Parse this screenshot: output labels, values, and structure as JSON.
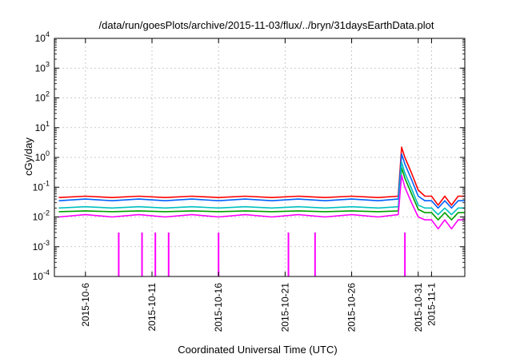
{
  "chart_data": {
    "type": "line",
    "title": "/data/run/goesPlots/archive/2015-11-03/flux/../bryn/31daysEarthData.plot",
    "xlabel": "Coordinated Universal Time (UTC)",
    "ylabel": "cGy/day",
    "yscale": "log",
    "ylim": [
      0.0001,
      10000
    ],
    "xlim": [
      "2015-10-03 16:00",
      "2015-11-03 12:00"
    ],
    "grid": true,
    "legend": "none",
    "yticks": [
      {
        "base": "10",
        "exp": "-4"
      },
      {
        "base": "10",
        "exp": "-3"
      },
      {
        "base": "10",
        "exp": "-2"
      },
      {
        "base": "10",
        "exp": "-1"
      },
      {
        "base": "10",
        "exp": "0"
      },
      {
        "base": "10",
        "exp": "1"
      },
      {
        "base": "10",
        "exp": "2"
      },
      {
        "base": "10",
        "exp": "3"
      },
      {
        "base": "10",
        "exp": "4"
      }
    ],
    "xticks": [
      {
        "label": "2015-10-6",
        "date": "2015-10-06"
      },
      {
        "label": "2015-10-11",
        "date": "2015-10-11"
      },
      {
        "label": "2015-10-16",
        "date": "2015-10-16"
      },
      {
        "label": "2015-10-21",
        "date": "2015-10-21"
      },
      {
        "label": "2015-10-26",
        "date": "2015-10-26"
      },
      {
        "label": "2015-10-31",
        "date": "2015-10-31"
      },
      {
        "label": "2015-11-1",
        "date": "2015-11-01"
      }
    ],
    "x": [
      "2015-10-04",
      "2015-10-06",
      "2015-10-08",
      "2015-10-10",
      "2015-10-12",
      "2015-10-14",
      "2015-10-16",
      "2015-10-18",
      "2015-10-20",
      "2015-10-22",
      "2015-10-24",
      "2015-10-26",
      "2015-10-28",
      "2015-10-29 12:00",
      "2015-10-29 18:00",
      "2015-10-30",
      "2015-10-30 12:00",
      "2015-10-31",
      "2015-10-31 12:00",
      "2015-11-01",
      "2015-11-01 12:00",
      "2015-11-02",
      "2015-11-02 12:00",
      "2015-11-03",
      "2015-11-03 12:00"
    ],
    "series": [
      {
        "color": "#ff0000",
        "values": [
          0.045,
          0.05,
          0.045,
          0.05,
          0.045,
          0.05,
          0.045,
          0.05,
          0.045,
          0.05,
          0.045,
          0.05,
          0.045,
          0.05,
          2.2,
          1.0,
          0.3,
          0.08,
          0.05,
          0.05,
          0.025,
          0.05,
          0.025,
          0.05,
          0.05
        ]
      },
      {
        "color": "#0060ff",
        "values": [
          0.035,
          0.04,
          0.035,
          0.04,
          0.035,
          0.04,
          0.035,
          0.04,
          0.035,
          0.04,
          0.035,
          0.04,
          0.035,
          0.04,
          1.3,
          0.6,
          0.18,
          0.05,
          0.035,
          0.035,
          0.02,
          0.035,
          0.02,
          0.035,
          0.035
        ]
      },
      {
        "color": "#00a000",
        "values": [
          0.015,
          0.016,
          0.015,
          0.016,
          0.015,
          0.016,
          0.015,
          0.016,
          0.015,
          0.016,
          0.015,
          0.016,
          0.015,
          0.016,
          0.45,
          0.2,
          0.06,
          0.018,
          0.014,
          0.014,
          0.008,
          0.014,
          0.008,
          0.014,
          0.014
        ]
      },
      {
        "color": "#00c0c0",
        "values": [
          0.02,
          0.022,
          0.02,
          0.022,
          0.02,
          0.022,
          0.02,
          0.022,
          0.02,
          0.022,
          0.02,
          0.022,
          0.02,
          0.022,
          0.7,
          0.3,
          0.09,
          0.025,
          0.02,
          0.02,
          0.012,
          0.02,
          0.012,
          0.02,
          0.02
        ]
      },
      {
        "color": "#ff00ff",
        "values": [
          0.01,
          0.012,
          0.01,
          0.012,
          0.01,
          0.012,
          0.01,
          0.012,
          0.01,
          0.012,
          0.01,
          0.012,
          0.01,
          0.012,
          0.25,
          0.1,
          0.03,
          0.01,
          0.008,
          0.008,
          0.004,
          0.008,
          0.004,
          0.008,
          0.008
        ]
      }
    ],
    "annotations_dropouts_magenta": [
      "2015-10-08 12:00",
      "2015-10-10 06:00",
      "2015-10-11 06:00",
      "2015-10-12 06:00",
      "2015-10-16",
      "2015-10-21 06:00",
      "2015-10-23 06:00",
      "2015-10-30"
    ]
  }
}
